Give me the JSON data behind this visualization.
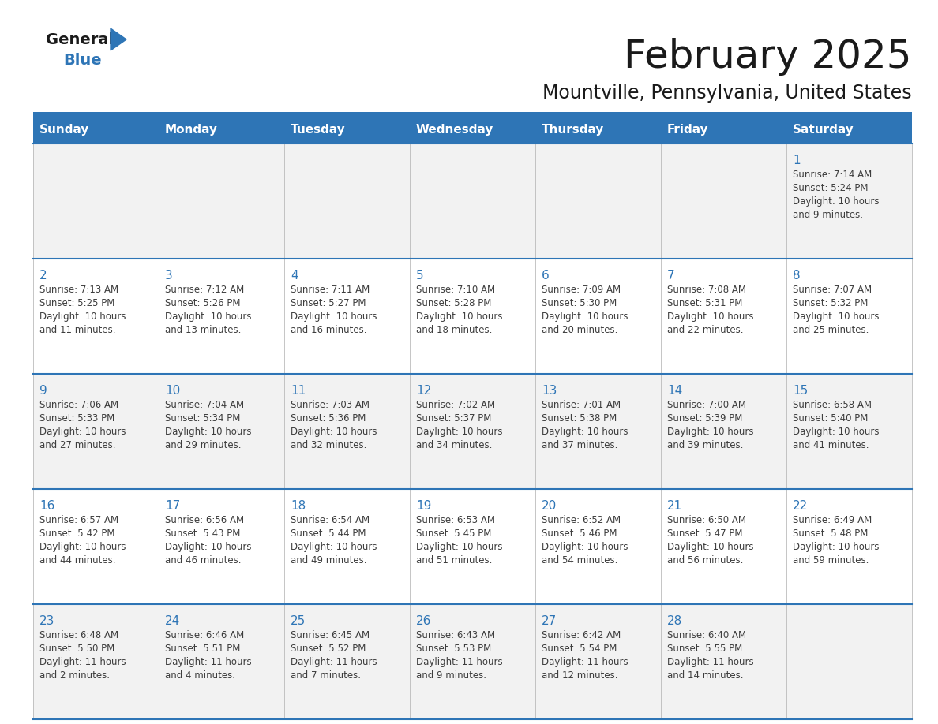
{
  "title": "February 2025",
  "subtitle": "Mountville, Pennsylvania, United States",
  "days_of_week": [
    "Sunday",
    "Monday",
    "Tuesday",
    "Wednesday",
    "Thursday",
    "Friday",
    "Saturday"
  ],
  "header_bg": "#2e75b6",
  "header_text": "#ffffff",
  "row_bg_light": "#f2f2f2",
  "row_bg_white": "#ffffff",
  "divider_color": "#2e75b6",
  "text_color": "#3d3d3d",
  "day_number_color": "#2e75b6",
  "title_color": "#1a1a1a",
  "subtitle_color": "#1a1a1a",
  "logo_general_color": "#1a1a1a",
  "logo_blue_color": "#2e75b6",
  "logo_triangle_color": "#2e75b6",
  "calendar_data": [
    [
      null,
      null,
      null,
      null,
      null,
      null,
      {
        "day": 1,
        "sunrise": "7:14 AM",
        "sunset": "5:24 PM",
        "daylight": "10 hours\nand 9 minutes."
      }
    ],
    [
      {
        "day": 2,
        "sunrise": "7:13 AM",
        "sunset": "5:25 PM",
        "daylight": "10 hours\nand 11 minutes."
      },
      {
        "day": 3,
        "sunrise": "7:12 AM",
        "sunset": "5:26 PM",
        "daylight": "10 hours\nand 13 minutes."
      },
      {
        "day": 4,
        "sunrise": "7:11 AM",
        "sunset": "5:27 PM",
        "daylight": "10 hours\nand 16 minutes."
      },
      {
        "day": 5,
        "sunrise": "7:10 AM",
        "sunset": "5:28 PM",
        "daylight": "10 hours\nand 18 minutes."
      },
      {
        "day": 6,
        "sunrise": "7:09 AM",
        "sunset": "5:30 PM",
        "daylight": "10 hours\nand 20 minutes."
      },
      {
        "day": 7,
        "sunrise": "7:08 AM",
        "sunset": "5:31 PM",
        "daylight": "10 hours\nand 22 minutes."
      },
      {
        "day": 8,
        "sunrise": "7:07 AM",
        "sunset": "5:32 PM",
        "daylight": "10 hours\nand 25 minutes."
      }
    ],
    [
      {
        "day": 9,
        "sunrise": "7:06 AM",
        "sunset": "5:33 PM",
        "daylight": "10 hours\nand 27 minutes."
      },
      {
        "day": 10,
        "sunrise": "7:04 AM",
        "sunset": "5:34 PM",
        "daylight": "10 hours\nand 29 minutes."
      },
      {
        "day": 11,
        "sunrise": "7:03 AM",
        "sunset": "5:36 PM",
        "daylight": "10 hours\nand 32 minutes."
      },
      {
        "day": 12,
        "sunrise": "7:02 AM",
        "sunset": "5:37 PM",
        "daylight": "10 hours\nand 34 minutes."
      },
      {
        "day": 13,
        "sunrise": "7:01 AM",
        "sunset": "5:38 PM",
        "daylight": "10 hours\nand 37 minutes."
      },
      {
        "day": 14,
        "sunrise": "7:00 AM",
        "sunset": "5:39 PM",
        "daylight": "10 hours\nand 39 minutes."
      },
      {
        "day": 15,
        "sunrise": "6:58 AM",
        "sunset": "5:40 PM",
        "daylight": "10 hours\nand 41 minutes."
      }
    ],
    [
      {
        "day": 16,
        "sunrise": "6:57 AM",
        "sunset": "5:42 PM",
        "daylight": "10 hours\nand 44 minutes."
      },
      {
        "day": 17,
        "sunrise": "6:56 AM",
        "sunset": "5:43 PM",
        "daylight": "10 hours\nand 46 minutes."
      },
      {
        "day": 18,
        "sunrise": "6:54 AM",
        "sunset": "5:44 PM",
        "daylight": "10 hours\nand 49 minutes."
      },
      {
        "day": 19,
        "sunrise": "6:53 AM",
        "sunset": "5:45 PM",
        "daylight": "10 hours\nand 51 minutes."
      },
      {
        "day": 20,
        "sunrise": "6:52 AM",
        "sunset": "5:46 PM",
        "daylight": "10 hours\nand 54 minutes."
      },
      {
        "day": 21,
        "sunrise": "6:50 AM",
        "sunset": "5:47 PM",
        "daylight": "10 hours\nand 56 minutes."
      },
      {
        "day": 22,
        "sunrise": "6:49 AM",
        "sunset": "5:48 PM",
        "daylight": "10 hours\nand 59 minutes."
      }
    ],
    [
      {
        "day": 23,
        "sunrise": "6:48 AM",
        "sunset": "5:50 PM",
        "daylight": "11 hours\nand 2 minutes."
      },
      {
        "day": 24,
        "sunrise": "6:46 AM",
        "sunset": "5:51 PM",
        "daylight": "11 hours\nand 4 minutes."
      },
      {
        "day": 25,
        "sunrise": "6:45 AM",
        "sunset": "5:52 PM",
        "daylight": "11 hours\nand 7 minutes."
      },
      {
        "day": 26,
        "sunrise": "6:43 AM",
        "sunset": "5:53 PM",
        "daylight": "11 hours\nand 9 minutes."
      },
      {
        "day": 27,
        "sunrise": "6:42 AM",
        "sunset": "5:54 PM",
        "daylight": "11 hours\nand 12 minutes."
      },
      {
        "day": 28,
        "sunrise": "6:40 AM",
        "sunset": "5:55 PM",
        "daylight": "11 hours\nand 14 minutes."
      },
      null
    ]
  ]
}
